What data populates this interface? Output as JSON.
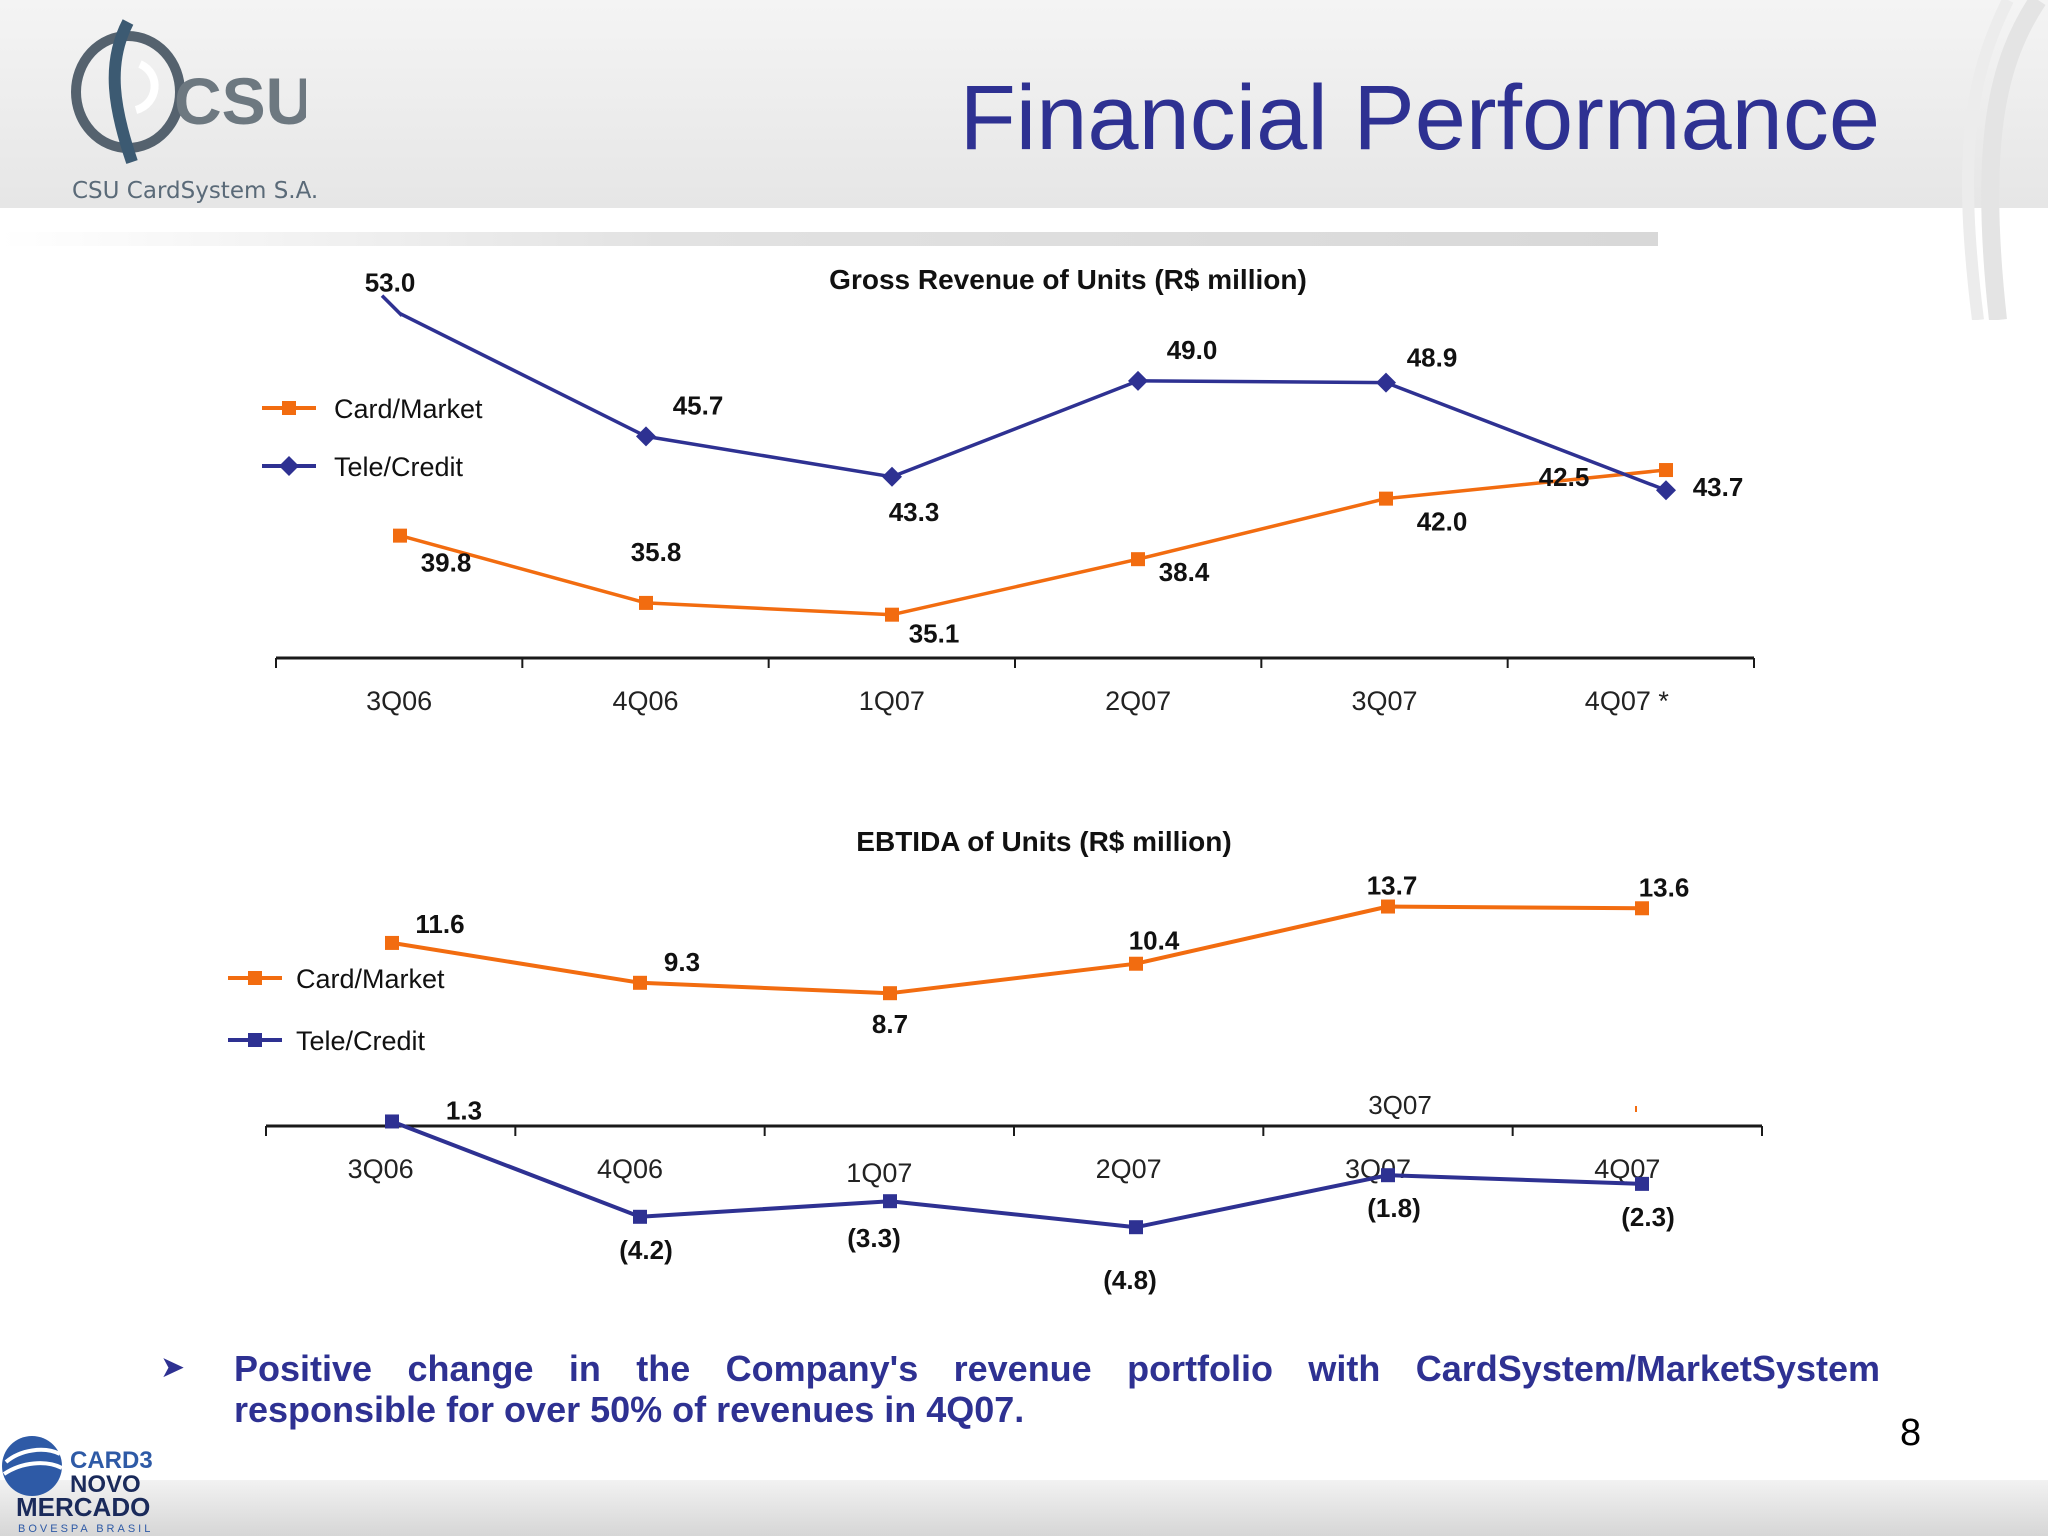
{
  "header": {
    "title": "Financial Performance",
    "logo_text": "CSU",
    "company_name": "CSU CardSystem S.A."
  },
  "colors": {
    "card_market": "#f26c10",
    "tele_credit": "#2e3192",
    "axis": "#1a1a1a"
  },
  "chart_data": [
    {
      "type": "line",
      "title": "Gross Revenue of Units (R$ million)",
      "categories": [
        "3Q06",
        "4Q06",
        "1Q07",
        "2Q07",
        "3Q07",
        "4Q07 *"
      ],
      "series": [
        {
          "name": "Card/Market",
          "values": [
            39.8,
            35.8,
            35.1,
            38.4,
            42.0,
            43.7
          ],
          "labels": [
            "39.8",
            "35.8",
            "35.1",
            "38.4",
            "42.0",
            "43.7"
          ],
          "marker": "square",
          "color": "#f26c10"
        },
        {
          "name": "Tele/Credit",
          "values": [
            53.0,
            45.7,
            43.3,
            49.0,
            48.9,
            42.5
          ],
          "labels": [
            "53.0",
            "45.7",
            "43.3",
            "49.0",
            "48.9",
            "42.5"
          ],
          "marker": "diamond",
          "color": "#2e3192"
        }
      ],
      "ylim": [
        33,
        55
      ],
      "legend": "left"
    },
    {
      "type": "line",
      "title": "EBTIDA of Units (R$ million)",
      "categories": [
        "3Q06",
        "4Q06",
        "1Q07",
        "2Q07",
        "3Q07",
        "4Q07"
      ],
      "series": [
        {
          "name": "Card/Market",
          "values": [
            11.6,
            9.3,
            8.7,
            10.4,
            13.7,
            13.6
          ],
          "labels": [
            "11.6",
            "9.3",
            "8.7",
            "10.4",
            "13.7",
            "13.6"
          ],
          "marker": "square",
          "color": "#f26c10"
        },
        {
          "name": "Tele/Credit",
          "values": [
            1.3,
            -4.2,
            -3.3,
            -4.8,
            -1.8,
            -2.3
          ],
          "labels": [
            "1.3",
            "(4.2)",
            "(3.3)",
            "(4.8)",
            "(1.8)",
            "(2.3)"
          ],
          "marker": "square",
          "color": "#2e3192"
        }
      ],
      "ylim": [
        -6,
        15
      ],
      "legend": "left",
      "annotation": "3Q07"
    }
  ],
  "bullet": "Positive change in the Company's revenue portfolio with CardSystem/MarketSystem responsible for over 50% of revenues in 4Q07.",
  "page_number": "8",
  "footer_logo": {
    "line1": "CARD3",
    "line2": "NOVO",
    "line3": "MERCADO",
    "line4": "BOVESPA BRASIL"
  }
}
